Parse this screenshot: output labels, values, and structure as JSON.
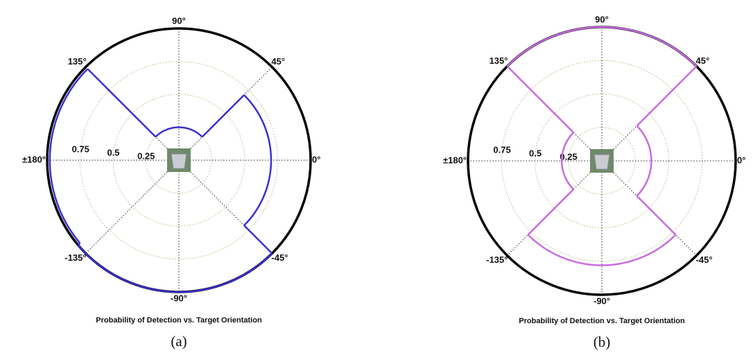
{
  "chart_data": [
    {
      "type": "polar",
      "title": "Probability of Detection vs. Target Orientation",
      "caption": "(a)",
      "rlim": [
        0,
        1
      ],
      "rticks": [
        0.25,
        0.5,
        0.75
      ],
      "thetaticks": [
        {
          "value": 90,
          "label": "90°"
        },
        {
          "value": 45,
          "label": "45°"
        },
        {
          "value": 0,
          "label": "0°"
        },
        {
          "value": -45,
          "label": "-45°"
        },
        {
          "value": -90,
          "label": "-90°"
        },
        {
          "value": -135,
          "label": "-135°"
        },
        {
          "value": 180,
          "label": "±180°"
        },
        {
          "value": 135,
          "label": "135°"
        }
      ],
      "series": [
        {
          "color": "#3b2fd1",
          "sectors": [
            {
              "from": -45,
              "to": 45,
              "r": 0.7
            },
            {
              "from": 45,
              "to": 135,
              "r": 0.25
            },
            {
              "from": 135,
              "to": 220,
              "r": 0.98
            },
            {
              "from": 220,
              "to": 315,
              "r": 1.0
            }
          ]
        }
      ]
    },
    {
      "type": "polar",
      "title": "Probability of Detection vs. Target Orientation",
      "caption": "(b)",
      "rlim": [
        0,
        1
      ],
      "rticks": [
        0.25,
        0.5,
        0.75
      ],
      "thetaticks": [
        {
          "value": 90,
          "label": "90°"
        },
        {
          "value": 45,
          "label": "45°"
        },
        {
          "value": 0,
          "label": "0°"
        },
        {
          "value": -45,
          "label": "-45°"
        },
        {
          "value": -90,
          "label": "-90°"
        },
        {
          "value": -135,
          "label": "-135°"
        },
        {
          "value": 180,
          "label": "±180°"
        },
        {
          "value": 135,
          "label": "135°"
        }
      ],
      "series": [
        {
          "color": "#c86be0",
          "sectors": [
            {
              "from": -45,
              "to": 45,
              "r": 0.37
            },
            {
              "from": 45,
              "to": 135,
              "r": 1.0
            },
            {
              "from": 135,
              "to": 225,
              "r": 0.3
            },
            {
              "from": 225,
              "to": 315,
              "r": 0.78
            }
          ]
        }
      ]
    }
  ]
}
